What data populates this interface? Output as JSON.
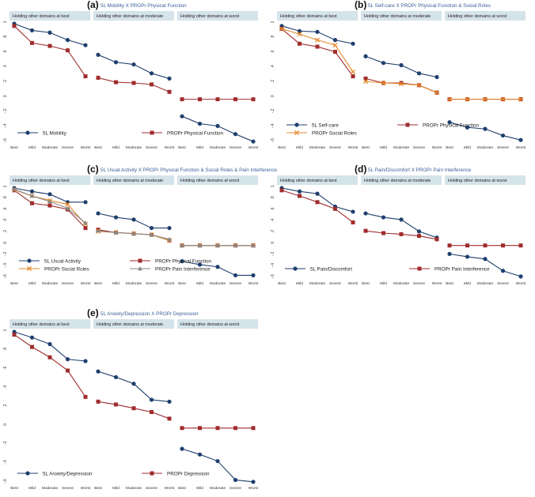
{
  "chart_data": [
    {
      "type": "line",
      "panel_letter": "(a)",
      "title": "5L Mobility X PROPr Physical Function",
      "categories": [
        "Best",
        "Mild",
        "Moderate",
        "Severe",
        "Worst"
      ],
      "ylim": [
        -0.6,
        1.0
      ],
      "y_ticks": [
        "1",
        ".8",
        ".6",
        ".4",
        ".2",
        "0",
        "-.2",
        "-.4",
        "-.6"
      ],
      "subplot_titles": [
        "Holding other domains at best",
        "Holding other domains at moderate",
        "Holding other domains at worst"
      ],
      "series": [
        {
          "name": "5L Mobility",
          "color": "#1f3f6e",
          "marker": "circle",
          "values": [
            [
              1.0,
              0.91,
              0.88,
              0.78,
              0.71
            ],
            [
              0.58,
              0.48,
              0.45,
              0.33,
              0.26
            ],
            [
              -0.25,
              -0.35,
              -0.38,
              -0.49,
              -0.59
            ]
          ]
        },
        {
          "name": "PROPr Physical Function",
          "color": "#a02c2c",
          "marker": "square",
          "values": [
            [
              0.97,
              0.74,
              0.7,
              0.64,
              0.29
            ],
            [
              0.27,
              0.21,
              0.2,
              0.18,
              0.08
            ],
            [
              -0.02,
              -0.02,
              -0.02,
              -0.02,
              -0.02
            ]
          ]
        }
      ]
    },
    {
      "type": "line",
      "panel_letter": "(b)",
      "title": "5L Self-care X PROPr Physical Function & Social Roles",
      "categories": [
        "Best",
        "Mild",
        "Moderate",
        "Severe",
        "Worst"
      ],
      "ylim": [
        -0.6,
        1.0
      ],
      "y_ticks": [
        "1",
        ".8",
        ".6",
        ".4",
        ".2",
        "0",
        "-.2",
        "-.4",
        "-.6"
      ],
      "subplot_titles": [
        "Holding other domains at best",
        "Holding other domains at moderate",
        "Holding other domains at worst"
      ],
      "series": [
        {
          "name": "5L Self-care",
          "color": "#1f3f6e",
          "marker": "circle",
          "values": [
            [
              0.97,
              0.9,
              0.89,
              0.78,
              0.73
            ],
            [
              0.56,
              0.47,
              0.44,
              0.33,
              0.28
            ],
            [
              -0.33,
              -0.4,
              -0.42,
              -0.51,
              -0.57
            ]
          ]
        },
        {
          "name": "PROPr Physical Function",
          "color": "#a02c2c",
          "marker": "square",
          "values": [
            [
              0.93,
              0.73,
              0.69,
              0.62,
              0.29
            ],
            [
              0.26,
              0.2,
              0.2,
              0.17,
              0.07
            ],
            [
              -0.02,
              -0.02,
              -0.02,
              -0.02,
              -0.02
            ]
          ]
        },
        {
          "name": "PROPr Social Roles",
          "color": "#e6892b",
          "marker": "x",
          "values": [
            [
              0.93,
              0.86,
              0.78,
              0.71,
              0.35
            ],
            [
              0.22,
              0.2,
              0.19,
              0.17,
              0.07
            ],
            [
              -0.02,
              -0.02,
              -0.02,
              -0.02,
              -0.02
            ]
          ]
        }
      ]
    },
    {
      "type": "line",
      "panel_letter": "(c)",
      "title": "5L Usual Activity X PROPr Physical Function & Social Roles & Pain Interference",
      "categories": [
        "Best",
        "Mild",
        "Moderate",
        "Severe",
        "Worst"
      ],
      "ylim": [
        -0.6,
        1.0
      ],
      "y_ticks": [
        "1",
        ".8",
        ".6",
        ".4",
        ".2",
        "0",
        "-.2",
        "-.4",
        "-.6"
      ],
      "subplot_titles": [
        "Holding other domains at best",
        "Holding other domains at moderate",
        "Holding other domains at worst"
      ],
      "series": [
        {
          "name": "5L Usual Activity",
          "color": "#1f3f6e",
          "marker": "circle",
          "values": [
            [
              1.0,
              0.94,
              0.89,
              0.75,
              0.75
            ],
            [
              0.55,
              0.48,
              0.44,
              0.29,
              0.29
            ],
            [
              -0.3,
              -0.36,
              -0.4,
              -0.55,
              -0.55
            ]
          ]
        },
        {
          "name": "PROPr Physical Function",
          "color": "#a02c2c",
          "marker": "square",
          "values": [
            [
              0.96,
              0.73,
              0.69,
              0.62,
              0.29
            ],
            [
              0.26,
              0.21,
              0.19,
              0.17,
              0.07
            ],
            [
              -0.02,
              -0.02,
              -0.02,
              -0.02,
              -0.02
            ]
          ]
        },
        {
          "name": "PROPr Social Roles",
          "color": "#e6892b",
          "marker": "x",
          "values": [
            [
              0.97,
              0.86,
              0.78,
              0.71,
              0.36
            ],
            [
              0.23,
              0.21,
              0.19,
              0.17,
              0.07
            ],
            [
              -0.02,
              -0.02,
              -0.02,
              -0.02,
              -0.02
            ]
          ]
        },
        {
          "name": "PROPr Pain Interference",
          "color": "#888888",
          "marker": "triangle",
          "values": [
            [
              0.98,
              0.86,
              0.76,
              0.64,
              0.38
            ],
            [
              0.24,
              0.21,
              0.19,
              0.17,
              0.09
            ],
            [
              -0.02,
              -0.02,
              -0.02,
              -0.02,
              -0.02
            ]
          ]
        }
      ]
    },
    {
      "type": "line",
      "panel_letter": "(d)",
      "title": "5L Pain/Discomfort X PROPr Pain Interference",
      "categories": [
        "Best",
        "Mild",
        "Moderate",
        "Severe",
        "Worst"
      ],
      "ylim": [
        -0.6,
        1.0
      ],
      "y_ticks": [
        "1",
        ".8",
        ".6",
        ".4",
        ".2",
        "0",
        "-.2",
        "-.4",
        "-.6"
      ],
      "subplot_titles": [
        "Holding other domains at best",
        "Holding other domains at moderate",
        "Holding other domains at worst"
      ],
      "series": [
        {
          "name": "5L Pain/Discomfort",
          "color": "#1f3f6e",
          "marker": "circle",
          "values": [
            [
              1.0,
              0.94,
              0.9,
              0.67,
              0.58
            ],
            [
              0.55,
              0.48,
              0.44,
              0.23,
              0.12
            ],
            [
              -0.17,
              -0.22,
              -0.26,
              -0.47,
              -0.57
            ]
          ]
        },
        {
          "name": "PROPr Pain Interference",
          "color": "#a02c2c",
          "marker": "square",
          "values": [
            [
              0.96,
              0.86,
              0.75,
              0.63,
              0.39
            ],
            [
              0.24,
              0.2,
              0.18,
              0.15,
              0.09
            ],
            [
              -0.02,
              -0.02,
              -0.02,
              -0.02,
              -0.02
            ]
          ]
        }
      ]
    },
    {
      "type": "line",
      "panel_letter": "(e)",
      "title": "5L Anxiety/Depression X PROPr Depression",
      "categories": [
        "Best",
        "Mild",
        "Moderate",
        "Severe",
        "Worst"
      ],
      "ylim": [
        -0.6,
        1.0
      ],
      "y_ticks": [
        "1",
        ".8",
        ".6",
        ".4",
        ".2",
        "0",
        "-.2",
        "-.4",
        "-.6"
      ],
      "subplot_titles": [
        "Holding other domains at best",
        "Holding other domains at moderate",
        "Holding other domains at worst"
      ],
      "series": [
        {
          "name": "5L Anxiety/Depression",
          "color": "#1f3f6e",
          "marker": "circle",
          "values": [
            [
              1.0,
              0.94,
              0.87,
              0.71,
              0.69
            ],
            [
              0.58,
              0.52,
              0.45,
              0.28,
              0.26
            ],
            [
              -0.24,
              -0.3,
              -0.37,
              -0.57,
              -0.59
            ]
          ]
        },
        {
          "name": "PROPr Depression",
          "color": "#a02c2c",
          "marker": "square",
          "values": [
            [
              0.97,
              0.84,
              0.73,
              0.59,
              0.31
            ],
            [
              0.26,
              0.23,
              0.19,
              0.15,
              0.08
            ],
            [
              -0.02,
              -0.02,
              -0.02,
              -0.02,
              -0.02
            ]
          ]
        }
      ]
    }
  ]
}
